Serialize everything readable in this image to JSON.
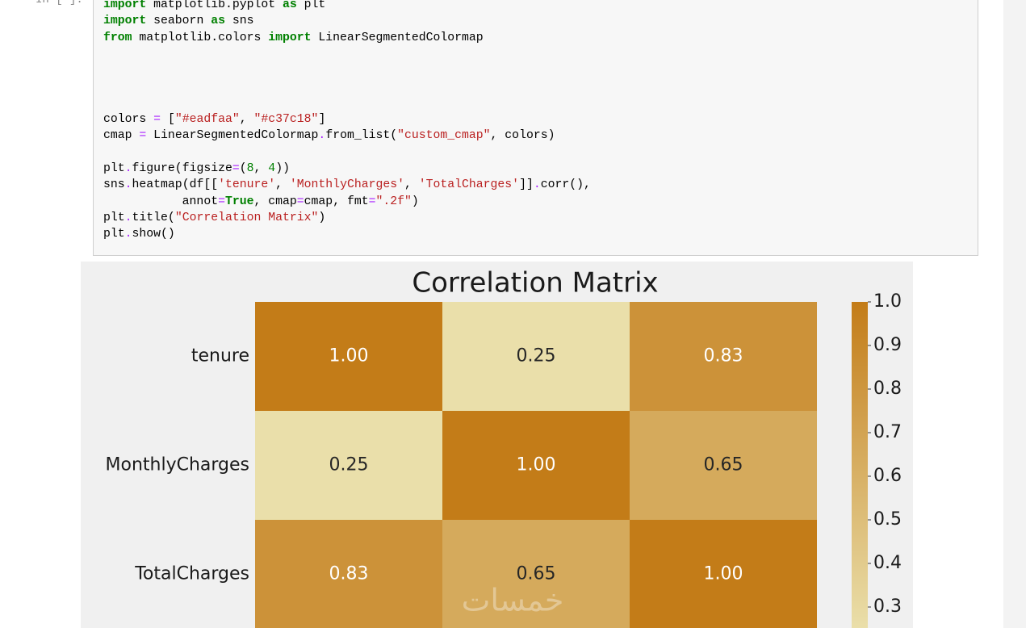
{
  "prompt": "In [ ]:",
  "code": [
    [
      {
        "text": "import",
        "color": "#008000",
        "bold": true
      },
      {
        "text": " matplotlib.pyplot "
      },
      {
        "text": "as",
        "color": "#008000",
        "bold": true
      },
      {
        "text": " plt"
      }
    ],
    [
      {
        "text": "import",
        "color": "#008000",
        "bold": true
      },
      {
        "text": " seaborn "
      },
      {
        "text": "as",
        "color": "#008000",
        "bold": true
      },
      {
        "text": " sns"
      }
    ],
    [
      {
        "text": "from",
        "color": "#008000",
        "bold": true
      },
      {
        "text": " matplotlib.colors "
      },
      {
        "text": "import",
        "color": "#008000",
        "bold": true
      },
      {
        "text": " LinearSegmentedColormap"
      }
    ],
    [],
    [],
    [],
    [],
    [
      {
        "text": "colors "
      },
      {
        "text": "=",
        "color": "#aa22ff"
      },
      {
        "text": " ["
      },
      {
        "text": "\"#eadfaa\"",
        "color": "#ba2121"
      },
      {
        "text": ", "
      },
      {
        "text": "\"#c37c18\"",
        "color": "#ba2121"
      },
      {
        "text": "]"
      }
    ],
    [
      {
        "text": "cmap "
      },
      {
        "text": "=",
        "color": "#aa22ff"
      },
      {
        "text": " LinearSegmentedColormap"
      },
      {
        "text": ".",
        "color": "#aa22ff"
      },
      {
        "text": "from_list("
      },
      {
        "text": "\"custom_cmap\"",
        "color": "#ba2121"
      },
      {
        "text": ", colors)"
      }
    ],
    [],
    [
      {
        "text": "plt"
      },
      {
        "text": ".",
        "color": "#aa22ff"
      },
      {
        "text": "figure(figsize"
      },
      {
        "text": "=",
        "color": "#aa22ff"
      },
      {
        "text": "("
      },
      {
        "text": "8",
        "color": "#008000"
      },
      {
        "text": ", "
      },
      {
        "text": "4",
        "color": "#008000"
      },
      {
        "text": "))"
      }
    ],
    [
      {
        "text": "sns"
      },
      {
        "text": ".",
        "color": "#aa22ff"
      },
      {
        "text": "heatmap(df[["
      },
      {
        "text": "'tenure'",
        "color": "#ba2121"
      },
      {
        "text": ", "
      },
      {
        "text": "'MonthlyCharges'",
        "color": "#ba2121"
      },
      {
        "text": ", "
      },
      {
        "text": "'TotalCharges'",
        "color": "#ba2121"
      },
      {
        "text": "]]"
      },
      {
        "text": ".",
        "color": "#aa22ff"
      },
      {
        "text": "corr(),"
      }
    ],
    [
      {
        "text": "           annot"
      },
      {
        "text": "=",
        "color": "#aa22ff"
      },
      {
        "text": "True",
        "color": "#008000",
        "bold": true
      },
      {
        "text": ", cmap"
      },
      {
        "text": "=",
        "color": "#aa22ff"
      },
      {
        "text": "cmap, fmt"
      },
      {
        "text": "=",
        "color": "#aa22ff"
      },
      {
        "text": "\".2f\"",
        "color": "#ba2121"
      },
      {
        "text": ")"
      }
    ],
    [
      {
        "text": "plt"
      },
      {
        "text": ".",
        "color": "#aa22ff"
      },
      {
        "text": "title("
      },
      {
        "text": "\"Correlation Matrix\"",
        "color": "#ba2121"
      },
      {
        "text": ")"
      }
    ],
    [
      {
        "text": "plt"
      },
      {
        "text": ".",
        "color": "#aa22ff"
      },
      {
        "text": "show()"
      }
    ]
  ],
  "chart_data": {
    "type": "heatmap",
    "title": "Correlation Matrix",
    "rows": [
      "tenure",
      "MonthlyCharges",
      "TotalCharges"
    ],
    "values": [
      [
        1,
        0.25,
        0.83
      ],
      [
        0.25,
        1,
        0.65
      ],
      [
        0.83,
        0.65,
        1
      ]
    ],
    "value_labels": [
      [
        "1.00",
        "0.25",
        "0.83"
      ],
      [
        "0.25",
        "1.00",
        "0.65"
      ],
      [
        "0.83",
        "0.65",
        "1.00"
      ]
    ],
    "colors": [
      "#eadfaa",
      "#c37c18"
    ],
    "clim": [
      0.25,
      1
    ],
    "cticks": [
      {
        "value": 1,
        "label": "1.0"
      },
      0.9,
      0.8,
      0.7,
      0.6,
      0.5,
      0.4,
      0.3
    ]
  },
  "watermark": "خمسات"
}
